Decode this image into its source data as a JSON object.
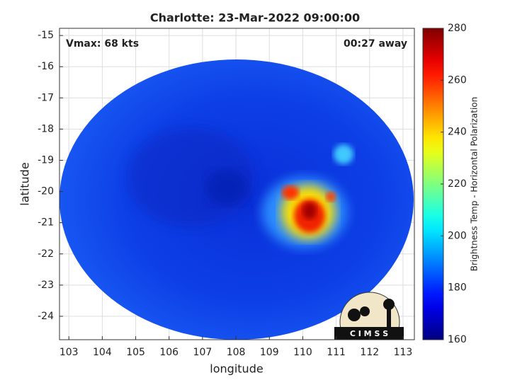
{
  "chart_data": {
    "type": "heatmap",
    "title": "Charlotte: 23-Mar-2022 09:00:00",
    "annotations": [
      "Vmax: 68 kts",
      "00:27 away"
    ],
    "x_label": "longitude",
    "y_label": "latitude",
    "xlim": [
      102.72,
      113.34
    ],
    "xticks": [
      103,
      104,
      105,
      106,
      107,
      108,
      109,
      110,
      111,
      112,
      113
    ],
    "ylim": [
      -24.75,
      -14.77
    ],
    "yticks": [
      -24,
      -23,
      -22,
      -21,
      -20,
      -19,
      -18,
      -17,
      -16,
      -15
    ],
    "grid": true,
    "colorbar": {
      "label": "Brightness Temp - Horizontal Polarization",
      "clim": [
        160,
        280
      ],
      "ticks": [
        160,
        180,
        200,
        220,
        240,
        260,
        280
      ],
      "colormap": "jet"
    },
    "logo_text": "C I M S S"
  }
}
